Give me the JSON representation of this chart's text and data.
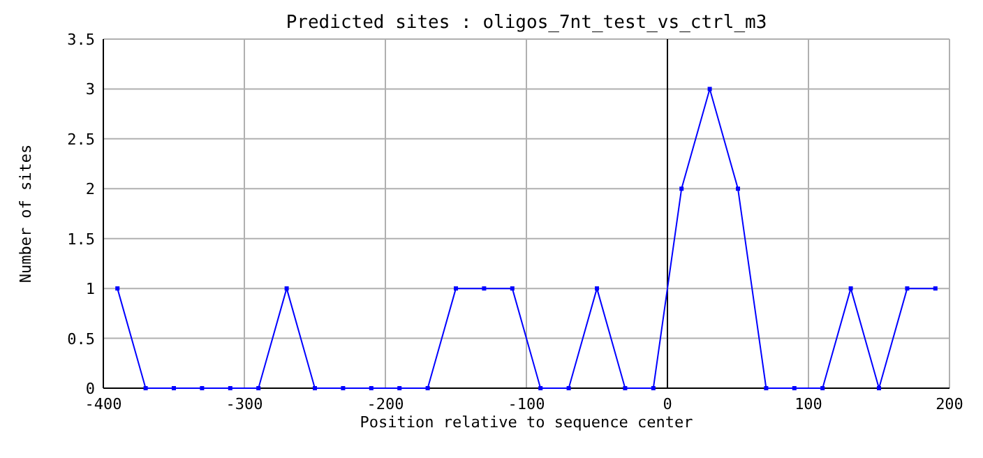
{
  "chart_data": {
    "type": "line",
    "title": "Predicted sites : oligos_7nt_test_vs_ctrl_m3",
    "xlabel": "Position relative to sequence center",
    "ylabel": "Number of sites",
    "x": [
      -390,
      -370,
      -350,
      -330,
      -310,
      -290,
      -270,
      -250,
      -230,
      -210,
      -190,
      -170,
      -150,
      -130,
      -110,
      -90,
      -70,
      -50,
      -30,
      -10,
      10,
      30,
      50,
      70,
      90,
      110,
      130,
      150,
      170,
      190
    ],
    "series": [
      {
        "color": "#0000ff",
        "values": [
          1,
          0,
          0,
          0,
          0,
          0,
          1,
          0,
          0,
          0,
          0,
          0,
          1,
          1,
          1,
          0,
          0,
          1,
          0,
          0,
          2,
          3,
          2,
          0,
          0,
          0,
          1,
          0,
          1,
          1
        ]
      }
    ],
    "xlim": [
      -400,
      200
    ],
    "xticks": [
      -400,
      -300,
      -200,
      -100,
      0,
      100,
      200
    ],
    "ylim": [
      0,
      3.5
    ],
    "yticks": [
      0,
      0.5,
      1,
      1.5,
      2,
      2.5,
      3,
      3.5
    ],
    "grid": true,
    "marker": "square",
    "line_style": "solid",
    "ref_lines": [
      {
        "axis": "x",
        "value": 0,
        "color": "#000000"
      }
    ]
  }
}
